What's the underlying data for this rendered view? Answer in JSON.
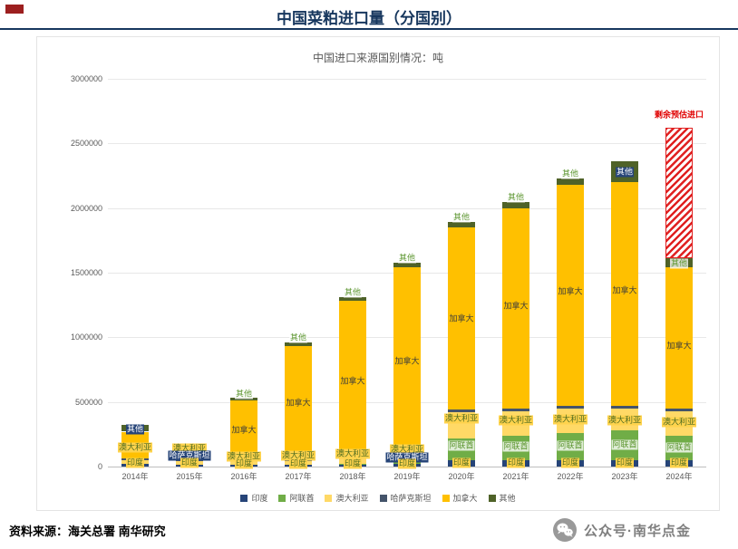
{
  "header": {
    "title": "中国菜粕进口量（分国别）"
  },
  "chart_data": {
    "type": "bar",
    "stacked": true,
    "title": "中国进口来源国别情况：吨",
    "xlabel": "",
    "ylabel": "吨",
    "ylim": [
      0,
      3000000
    ],
    "yticks": [
      0,
      500000,
      1000000,
      1500000,
      2000000,
      2500000,
      3000000
    ],
    "grid": true,
    "legend_position": "bottom",
    "categories": [
      "2014年",
      "2015年",
      "2016年",
      "2017年",
      "2018年",
      "2019年",
      "2020年",
      "2021年",
      "2022年",
      "2023年",
      "2024年"
    ],
    "series": [
      {
        "name": "印度",
        "color": "#264478",
        "values": [
          20000,
          15000,
          15000,
          15000,
          15000,
          20000,
          50000,
          50000,
          50000,
          50000,
          50000
        ]
      },
      {
        "name": "阿联酋",
        "color": "#70AD47",
        "values": [
          0,
          0,
          0,
          0,
          5000,
          20000,
          170000,
          190000,
          210000,
          230000,
          190000
        ]
      },
      {
        "name": "澳大利亚",
        "color": "#FFD966",
        "values": [
          30000,
          25000,
          25000,
          30000,
          40000,
          60000,
          200000,
          190000,
          190000,
          170000,
          190000
        ]
      },
      {
        "name": "哈萨克斯坦",
        "color": "#44546A",
        "values": [
          10000,
          10000,
          10000,
          10000,
          10000,
          20000,
          20000,
          20000,
          20000,
          20000,
          20000
        ]
      },
      {
        "name": "加拿大",
        "color": "#FFC000",
        "values": [
          210000,
          90000,
          460000,
          875000,
          1210000,
          1420000,
          1410000,
          1550000,
          1710000,
          1730000,
          1090000
        ]
      },
      {
        "name": "其他",
        "color": "#4F6228",
        "values": [
          50000,
          20000,
          20000,
          30000,
          30000,
          40000,
          40000,
          50000,
          50000,
          160000,
          70000
        ]
      }
    ],
    "estimate": {
      "year": "2024年",
      "value": 1010000,
      "label": "剩余预估进口",
      "color": "#E00000"
    },
    "bar_labels": [
      [
        {
          "t": "其他",
          "s": "dark",
          "v": 290000
        },
        {
          "t": "澳大利亚",
          "s": "yellow",
          "v": 150000
        },
        {
          "t": "印度",
          "s": "yellow",
          "v": 30000
        }
      ],
      [
        {
          "t": "澳大利亚",
          "s": "yellow",
          "v": 140000
        },
        {
          "t": "哈萨克斯坦",
          "s": "dark",
          "v": 85000
        },
        {
          "t": "印度",
          "s": "yellow",
          "v": 30000
        }
      ],
      [
        {
          "t": "其他",
          "s": "green",
          "v": 560000
        },
        {
          "t": "加拿大",
          "s": "plain",
          "v": 280000
        },
        {
          "t": "澳大利亚",
          "s": "yellow",
          "v": 80000
        },
        {
          "t": "印度",
          "s": "yellow",
          "v": 22000
        }
      ],
      [
        {
          "t": "其他",
          "s": "green",
          "v": 995000
        },
        {
          "t": "加拿大",
          "s": "plain",
          "v": 490000
        },
        {
          "t": "澳大利亚",
          "s": "yellow",
          "v": 85000
        },
        {
          "t": "印度",
          "s": "yellow",
          "v": 22000
        }
      ],
      [
        {
          "t": "其他",
          "s": "green",
          "v": 1345000
        },
        {
          "t": "加拿大",
          "s": "plain",
          "v": 660000
        },
        {
          "t": "澳大利亚",
          "s": "yellow",
          "v": 95000
        },
        {
          "t": "印度",
          "s": "yellow",
          "v": 22000
        }
      ],
      [
        {
          "t": "其他",
          "s": "green",
          "v": 1615000
        },
        {
          "t": "加拿大",
          "s": "plain",
          "v": 810000
        },
        {
          "t": "澳大利亚",
          "s": "yellow",
          "v": 135000
        },
        {
          "t": "哈萨克斯坦",
          "s": "dark",
          "v": 70000
        },
        {
          "t": "印度",
          "s": "yellow",
          "v": 20000
        }
      ],
      [
        {
          "t": "其他",
          "s": "green",
          "v": 1925000
        },
        {
          "t": "加拿大",
          "s": "plain",
          "v": 1140000
        },
        {
          "t": "澳大利亚",
          "s": "yellow",
          "v": 370000
        },
        {
          "t": "阿联酋",
          "s": "green",
          "v": 160000
        },
        {
          "t": "印度",
          "s": "yellow",
          "v": 25000
        }
      ],
      [
        {
          "t": "其他",
          "s": "green",
          "v": 2085000
        },
        {
          "t": "加拿大",
          "s": "plain",
          "v": 1240000
        },
        {
          "t": "澳大利亚",
          "s": "yellow",
          "v": 360000
        },
        {
          "t": "阿联酋",
          "s": "green",
          "v": 155000
        },
        {
          "t": "印度",
          "s": "yellow",
          "v": 25000
        }
      ],
      [
        {
          "t": "其他",
          "s": "green",
          "v": 2265000
        },
        {
          "t": "加拿大",
          "s": "plain",
          "v": 1350000
        },
        {
          "t": "澳大利亚",
          "s": "yellow",
          "v": 365000
        },
        {
          "t": "阿联酋",
          "s": "green",
          "v": 160000
        },
        {
          "t": "印度",
          "s": "yellow",
          "v": 25000
        }
      ],
      [
        {
          "t": "其他",
          "s": "dark",
          "v": 2280000
        },
        {
          "t": "加拿大",
          "s": "plain",
          "v": 1360000
        },
        {
          "t": "澳大利亚",
          "s": "yellow",
          "v": 355000
        },
        {
          "t": "阿联酋",
          "s": "green",
          "v": 165000
        },
        {
          "t": "印度",
          "s": "yellow",
          "v": 25000
        }
      ],
      [
        {
          "t": "剩余预估进口",
          "s": "red",
          "v": 2720000
        },
        {
          "t": "其他",
          "s": "green",
          "v": 1570000
        },
        {
          "t": "加拿大",
          "s": "plain",
          "v": 930000
        },
        {
          "t": "澳大利亚",
          "s": "yellow",
          "v": 340000
        },
        {
          "t": "阿联酋",
          "s": "green",
          "v": 150000
        },
        {
          "t": "印度",
          "s": "yellow",
          "v": 25000
        }
      ]
    ]
  },
  "footer": {
    "source": "资料来源：海关总署 南华研究",
    "wechat": "公众号·南华点金"
  }
}
